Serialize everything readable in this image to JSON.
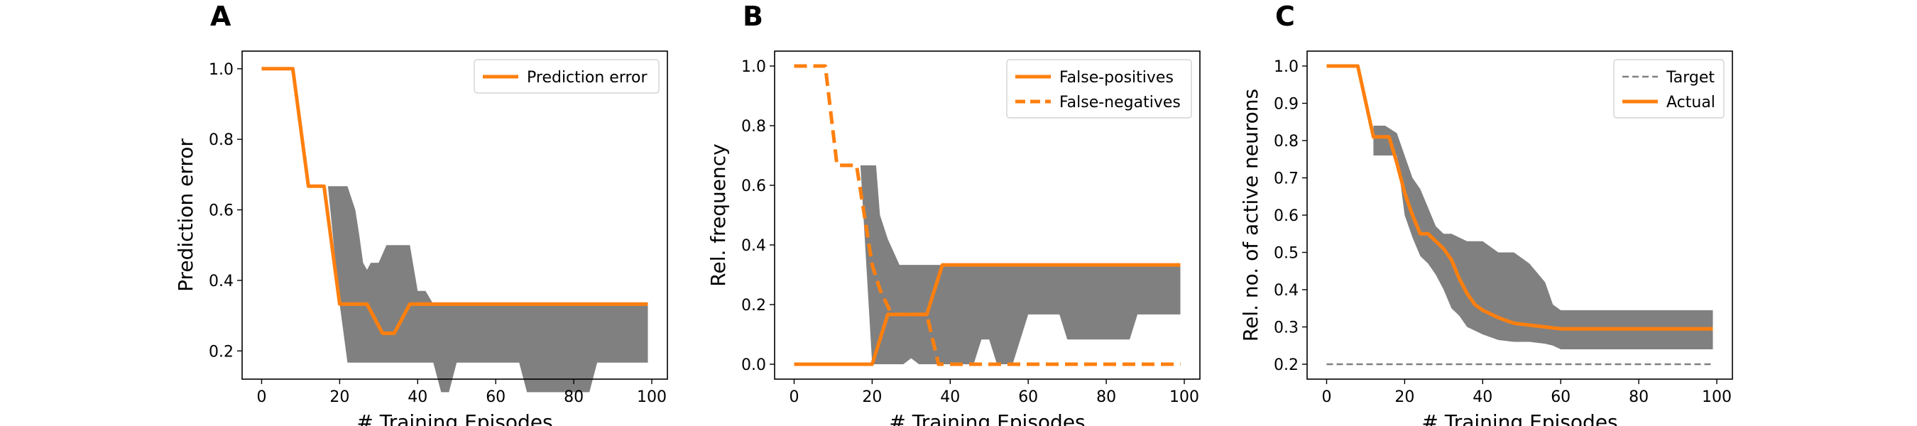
{
  "colors": {
    "series": "#ff7f0e",
    "band": "#808080",
    "target": "#808080",
    "axis": "#000000"
  },
  "chart_data": [
    {
      "panel_label": "A",
      "type": "line",
      "xlabel": "# Training Episodes",
      "ylabel": "Prediction error",
      "xlim": [
        -5,
        104
      ],
      "ylim": [
        0.12,
        1.05
      ],
      "xticks": [
        "0",
        "20",
        "40",
        "60",
        "80",
        "100"
      ],
      "yticks": [
        "0.2",
        "0.4",
        "0.6",
        "0.8",
        "1.0"
      ],
      "grid": false,
      "legend_position": "top-right",
      "series": [
        {
          "name": "Prediction error",
          "style": "solid",
          "x": [
            0,
            8,
            12,
            16,
            20,
            27,
            31,
            34,
            38,
            99
          ],
          "y": [
            1.0,
            1.0,
            0.667,
            0.667,
            0.333,
            0.333,
            0.25,
            0.25,
            0.333,
            0.333
          ]
        }
      ],
      "band": {
        "x": [
          17,
          20,
          22,
          24,
          25,
          26,
          27,
          28,
          30,
          32,
          34,
          36,
          38,
          40,
          42,
          44,
          46,
          48,
          50,
          52,
          54,
          56,
          60,
          62,
          64,
          66,
          68,
          70,
          72,
          74,
          76,
          80,
          82,
          84,
          86,
          88,
          90,
          92,
          94,
          96,
          99
        ],
        "lower": [
          0.667,
          0.333,
          0.167,
          0.167,
          0.167,
          0.167,
          0.167,
          0.167,
          0.167,
          0.167,
          0.167,
          0.167,
          0.167,
          0.167,
          0.167,
          0.167,
          0.083,
          0.083,
          0.167,
          0.167,
          0.167,
          0.167,
          0.167,
          0.167,
          0.167,
          0.167,
          0.083,
          0.083,
          0.083,
          0.083,
          0.083,
          0.083,
          0.083,
          0.083,
          0.167,
          0.167,
          0.167,
          0.167,
          0.167,
          0.167,
          0.167
        ],
        "upper": [
          0.667,
          0.667,
          0.667,
          0.6,
          0.53,
          0.45,
          0.43,
          0.45,
          0.45,
          0.5,
          0.5,
          0.5,
          0.5,
          0.37,
          0.37,
          0.333,
          0.333,
          0.333,
          0.333,
          0.333,
          0.333,
          0.333,
          0.333,
          0.333,
          0.333,
          0.333,
          0.333,
          0.333,
          0.333,
          0.333,
          0.333,
          0.333,
          0.333,
          0.333,
          0.333,
          0.333,
          0.333,
          0.333,
          0.333,
          0.333,
          0.333
        ]
      }
    },
    {
      "panel_label": "B",
      "type": "line",
      "xlabel": "# Training Episodes",
      "ylabel": "Rel. frequency",
      "xlim": [
        -5,
        104
      ],
      "ylim": [
        -0.05,
        1.05
      ],
      "xticks": [
        "0",
        "20",
        "40",
        "60",
        "80",
        "100"
      ],
      "yticks": [
        "0.0",
        "0.2",
        "0.4",
        "0.6",
        "0.8",
        "1.0"
      ],
      "grid": false,
      "legend_position": "top-right",
      "series": [
        {
          "name": "False-positives",
          "style": "solid",
          "x": [
            0,
            20,
            22,
            24,
            27,
            30,
            32,
            34,
            36,
            38,
            99
          ],
          "y": [
            0,
            0,
            0.083,
            0.167,
            0.167,
            0.167,
            0.167,
            0.167,
            0.25,
            0.333,
            0.333
          ]
        },
        {
          "name": "False-negatives",
          "style": "dashed",
          "x": [
            0,
            8,
            11,
            16,
            20,
            22,
            25,
            27,
            30,
            34,
            37,
            40,
            99
          ],
          "y": [
            1.0,
            1.0,
            0.667,
            0.667,
            0.333,
            0.25,
            0.167,
            0.167,
            0.167,
            0.167,
            0.0,
            0.0,
            0.0
          ]
        }
      ],
      "band": {
        "x": [
          17,
          20,
          21,
          22,
          24,
          27,
          28,
          30,
          32,
          34,
          36,
          38,
          40,
          42,
          44,
          46,
          48,
          50,
          52,
          54,
          56,
          60,
          62,
          64,
          66,
          68,
          70,
          72,
          74,
          76,
          80,
          82,
          84,
          86,
          88,
          90,
          92,
          94,
          96,
          99
        ],
        "lower": [
          0.667,
          0.0,
          0.0,
          0.0,
          0.0,
          0.0,
          0.0,
          0.02,
          0.0,
          0.0,
          0.0,
          0.0,
          0.0,
          0.0,
          0.0,
          0.0,
          0.083,
          0.083,
          0.0,
          0.0,
          0.0,
          0.167,
          0.167,
          0.167,
          0.167,
          0.167,
          0.083,
          0.083,
          0.083,
          0.083,
          0.083,
          0.083,
          0.083,
          0.083,
          0.167,
          0.167,
          0.167,
          0.167,
          0.167,
          0.167
        ],
        "upper": [
          0.667,
          0.667,
          0.667,
          0.5,
          0.42,
          0.333,
          0.333,
          0.333,
          0.333,
          0.333,
          0.333,
          0.333,
          0.333,
          0.333,
          0.333,
          0.333,
          0.333,
          0.333,
          0.333,
          0.333,
          0.333,
          0.333,
          0.333,
          0.333,
          0.333,
          0.333,
          0.333,
          0.333,
          0.333,
          0.333,
          0.333,
          0.333,
          0.333,
          0.333,
          0.333,
          0.333,
          0.333,
          0.333,
          0.333,
          0.333
        ]
      }
    },
    {
      "panel_label": "C",
      "type": "line",
      "xlabel": "# Training Episodes",
      "ylabel": "Rel. no. of active neurons",
      "xlim": [
        -5,
        104
      ],
      "ylim": [
        0.16,
        1.04
      ],
      "xticks": [
        "0",
        "20",
        "40",
        "60",
        "80",
        "100"
      ],
      "yticks": [
        "0.2",
        "0.3",
        "0.4",
        "0.5",
        "0.6",
        "0.7",
        "0.8",
        "0.9",
        "1.0"
      ],
      "grid": false,
      "legend_position": "top-right",
      "series": [
        {
          "name": "Target",
          "style": "dashed-thin",
          "x": [
            0,
            99
          ],
          "y": [
            0.2,
            0.2
          ]
        },
        {
          "name": "Actual",
          "style": "solid",
          "x": [
            0,
            8,
            12,
            16,
            18,
            20,
            22,
            24,
            26,
            28,
            30,
            32,
            34,
            36,
            38,
            40,
            44,
            48,
            52,
            56,
            60,
            70,
            80,
            90,
            99
          ],
          "y": [
            1.0,
            1.0,
            0.81,
            0.81,
            0.74,
            0.66,
            0.6,
            0.55,
            0.55,
            0.53,
            0.51,
            0.48,
            0.43,
            0.39,
            0.36,
            0.345,
            0.325,
            0.31,
            0.305,
            0.3,
            0.295,
            0.295,
            0.295,
            0.295,
            0.295
          ]
        }
      ],
      "band": {
        "x": [
          12,
          15,
          18,
          20,
          22,
          24,
          26,
          28,
          30,
          32,
          34,
          36,
          40,
          44,
          48,
          52,
          56,
          58,
          60,
          99
        ],
        "lower": [
          0.76,
          0.76,
          0.76,
          0.6,
          0.54,
          0.49,
          0.47,
          0.44,
          0.4,
          0.35,
          0.33,
          0.3,
          0.28,
          0.265,
          0.26,
          0.26,
          0.255,
          0.25,
          0.24,
          0.24
        ],
        "upper": [
          0.84,
          0.84,
          0.82,
          0.76,
          0.7,
          0.67,
          0.62,
          0.57,
          0.55,
          0.55,
          0.54,
          0.53,
          0.53,
          0.5,
          0.5,
          0.47,
          0.42,
          0.36,
          0.345,
          0.345
        ]
      }
    }
  ]
}
